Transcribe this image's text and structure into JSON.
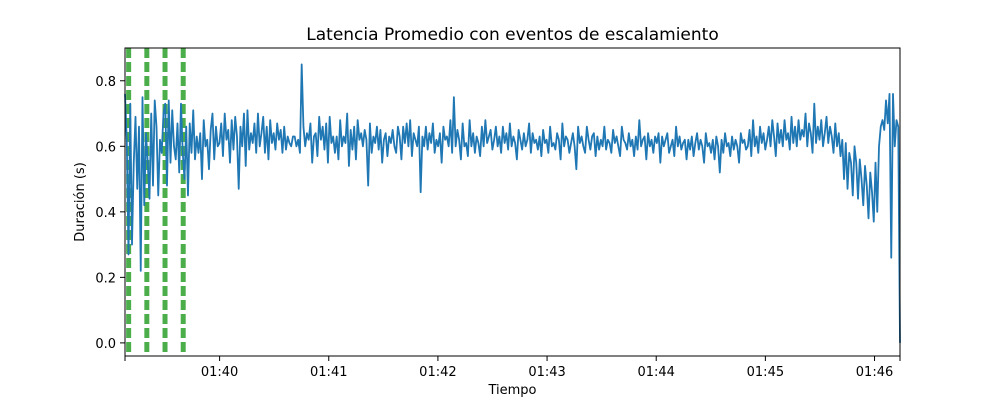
{
  "chart_data": {
    "type": "line",
    "title": "Latencia Promedio con eventos de escalamiento",
    "xlabel": "Tiempo",
    "ylabel": "Duración (s)",
    "x_start": "01:39:08",
    "x_end": "01:46:14",
    "xlim": [
      "01:39:08",
      "01:46:14"
    ],
    "ylim": [
      -0.04,
      0.9
    ],
    "x_ticks": [
      "01:40",
      "01:41",
      "01:42",
      "01:43",
      "01:44",
      "01:45",
      "01:46"
    ],
    "y_ticks": [
      "0.0",
      "0.2",
      "0.4",
      "0.6",
      "0.8"
    ],
    "grid": false,
    "line_color": "#1f77b4",
    "event_color": "#2ca02c",
    "scaling_events": [
      "01:39:10",
      "01:39:20",
      "01:39:30",
      "01:39:40"
    ],
    "series": [
      {
        "values": [
          0.76,
          0.62,
          0.27,
          0.73,
          0.3,
          0.55,
          0.69,
          0.47,
          0.66,
          0.22,
          0.75,
          0.42,
          0.64,
          0.55,
          0.44,
          0.7,
          0.48,
          0.74,
          0.66,
          0.45,
          0.62,
          0.58,
          0.7,
          0.73,
          0.48,
          0.74,
          0.55,
          0.71,
          0.6,
          0.56,
          0.67,
          0.52,
          0.73,
          0.58,
          0.5,
          0.66,
          0.45,
          0.67,
          0.58,
          0.71,
          0.56,
          0.63,
          0.58,
          0.64,
          0.5,
          0.68,
          0.6,
          0.62,
          0.53,
          0.65,
          0.7,
          0.56,
          0.66,
          0.6,
          0.61,
          0.67,
          0.57,
          0.7,
          0.62,
          0.65,
          0.55,
          0.68,
          0.59,
          0.69,
          0.63,
          0.47,
          0.66,
          0.6,
          0.7,
          0.54,
          0.71,
          0.59,
          0.64,
          0.61,
          0.67,
          0.58,
          0.7,
          0.6,
          0.64,
          0.69,
          0.58,
          0.66,
          0.56,
          0.68,
          0.61,
          0.64,
          0.59,
          0.67,
          0.62,
          0.65,
          0.58,
          0.66,
          0.59,
          0.63,
          0.61,
          0.6,
          0.63,
          0.63,
          0.6,
          0.62,
          0.58,
          0.85,
          0.66,
          0.6,
          0.64,
          0.62,
          0.67,
          0.55,
          0.63,
          0.64,
          0.57,
          0.69,
          0.62,
          0.66,
          0.59,
          0.67,
          0.55,
          0.69,
          0.61,
          0.63,
          0.58,
          0.63,
          0.56,
          0.68,
          0.6,
          0.63,
          0.61,
          0.7,
          0.54,
          0.65,
          0.59,
          0.66,
          0.56,
          0.68,
          0.62,
          0.64,
          0.6,
          0.65,
          0.62,
          0.48,
          0.67,
          0.58,
          0.63,
          0.61,
          0.66,
          0.59,
          0.65,
          0.55,
          0.62,
          0.64,
          0.57,
          0.63,
          0.61,
          0.65,
          0.6,
          0.58,
          0.66,
          0.63,
          0.56,
          0.66,
          0.61,
          0.67,
          0.6,
          0.68,
          0.57,
          0.64,
          0.62,
          0.6,
          0.66,
          0.46,
          0.63,
          0.6,
          0.66,
          0.59,
          0.64,
          0.61,
          0.67,
          0.58,
          0.62,
          0.6,
          0.64,
          0.55,
          0.66,
          0.62,
          0.63,
          0.6,
          0.68,
          0.58,
          0.75,
          0.6,
          0.65,
          0.62,
          0.56,
          0.67,
          0.6,
          0.61,
          0.57,
          0.68,
          0.6,
          0.64,
          0.58,
          0.63,
          0.61,
          0.57,
          0.66,
          0.6,
          0.68,
          0.61,
          0.63,
          0.65,
          0.59,
          0.62,
          0.66,
          0.6,
          0.63,
          0.58,
          0.66,
          0.61,
          0.64,
          0.59,
          0.67,
          0.6,
          0.63,
          0.61,
          0.56,
          0.65,
          0.62,
          0.59,
          0.64,
          0.6,
          0.62,
          0.67,
          0.58,
          0.64,
          0.61,
          0.62,
          0.59,
          0.63,
          0.57,
          0.65,
          0.61,
          0.62,
          0.58,
          0.66,
          0.6,
          0.61,
          0.59,
          0.64,
          0.62,
          0.56,
          0.67,
          0.6,
          0.63,
          0.62,
          0.58,
          0.61,
          0.64,
          0.6,
          0.53,
          0.66,
          0.61,
          0.63,
          0.6,
          0.58,
          0.66,
          0.62,
          0.59,
          0.63,
          0.64,
          0.57,
          0.63,
          0.59,
          0.62,
          0.6,
          0.66,
          0.59,
          0.62,
          0.61,
          0.58,
          0.65,
          0.61,
          0.63,
          0.6,
          0.57,
          0.66,
          0.62,
          0.61,
          0.59,
          0.64,
          0.6,
          0.62,
          0.57,
          0.63,
          0.59,
          0.68,
          0.6,
          0.62,
          0.63,
          0.56,
          0.64,
          0.6,
          0.62,
          0.58,
          0.63,
          0.61,
          0.64,
          0.55,
          0.63,
          0.6,
          0.62,
          0.64,
          0.58,
          0.6,
          0.62,
          0.57,
          0.66,
          0.6,
          0.63,
          0.59,
          0.61,
          0.62,
          0.56,
          0.62,
          0.59,
          0.63,
          0.57,
          0.61,
          0.64,
          0.59,
          0.62,
          0.6,
          0.55,
          0.64,
          0.6,
          0.61,
          0.58,
          0.62,
          0.56,
          0.63,
          0.6,
          0.52,
          0.62,
          0.58,
          0.64,
          0.6,
          0.61,
          0.57,
          0.63,
          0.59,
          0.62,
          0.6,
          0.55,
          0.64,
          0.61,
          0.62,
          0.59,
          0.6,
          0.65,
          0.57,
          0.68,
          0.6,
          0.63,
          0.58,
          0.66,
          0.61,
          0.64,
          0.59,
          0.62,
          0.66,
          0.6,
          0.68,
          0.63,
          0.57,
          0.67,
          0.61,
          0.65,
          0.6,
          0.68,
          0.62,
          0.64,
          0.59,
          0.69,
          0.61,
          0.66,
          0.6,
          0.68,
          0.62,
          0.65,
          0.63,
          0.7,
          0.6,
          0.67,
          0.64,
          0.58,
          0.73,
          0.61,
          0.66,
          0.62,
          0.68,
          0.6,
          0.64,
          0.69,
          0.61,
          0.66,
          0.63,
          0.58,
          0.67,
          0.6,
          0.64,
          0.57,
          0.62,
          0.5,
          0.61,
          0.47,
          0.58,
          0.55,
          0.45,
          0.6,
          0.55,
          0.44,
          0.56,
          0.5,
          0.42,
          0.54,
          0.48,
          0.38,
          0.52,
          0.46,
          0.37,
          0.55,
          0.4,
          0.6,
          0.66,
          0.68,
          0.65,
          0.74,
          0.67,
          0.76,
          0.26,
          0.76,
          0.6,
          0.68,
          0.66,
          0.0
        ]
      }
    ]
  }
}
